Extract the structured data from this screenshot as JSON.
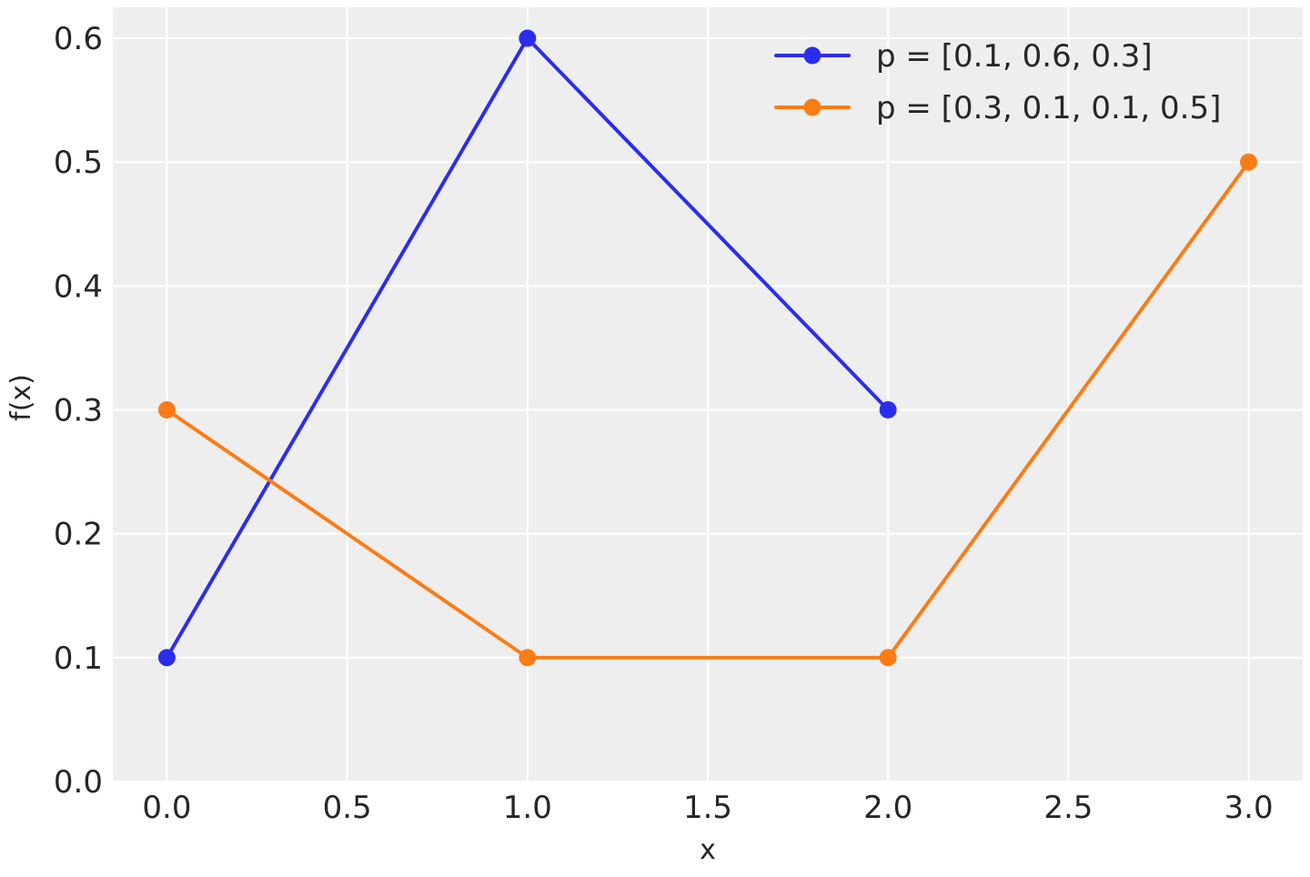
{
  "chart_data": {
    "type": "line",
    "title": "",
    "xlabel": "x",
    "ylabel": "f(x)",
    "xlim": [
      -0.15,
      3.15
    ],
    "ylim": [
      0.0,
      0.625
    ],
    "xticks": [
      "0.0",
      "0.5",
      "1.0",
      "1.5",
      "2.0",
      "2.5",
      "3.0"
    ],
    "yticks": [
      "0.0",
      "0.1",
      "0.2",
      "0.3",
      "0.4",
      "0.5",
      "0.6"
    ],
    "grid": true,
    "background": "#eeeeee",
    "legend_position": "top-right",
    "series": [
      {
        "name": "p = [0.1, 0.6, 0.3]",
        "x": [
          0,
          1,
          2
        ],
        "y": [
          0.1,
          0.6,
          0.3
        ],
        "color": "#2a2eec",
        "marker": "circle"
      },
      {
        "name": "p = [0.3, 0.1, 0.1, 0.5]",
        "x": [
          0,
          1,
          2,
          3
        ],
        "y": [
          0.3,
          0.1,
          0.1,
          0.5
        ],
        "color": "#fa7c17",
        "marker": "circle"
      }
    ]
  }
}
